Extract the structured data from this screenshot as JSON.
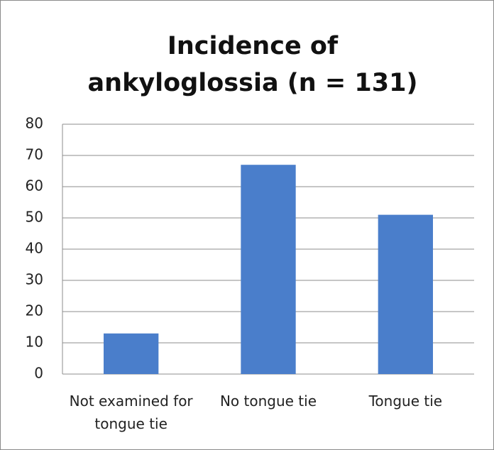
{
  "chart_data": {
    "type": "bar",
    "title": "Incidence of ankyloglossia (n = 131)",
    "categories": [
      "Not examined for tongue tie",
      "No tongue tie",
      "Tongue tie"
    ],
    "values": [
      13,
      67,
      51
    ],
    "color": "#4a7ecb",
    "ylim": [
      0,
      80
    ],
    "yticks": [
      0,
      10,
      20,
      30,
      40,
      50,
      60,
      70,
      80
    ],
    "grid": true
  }
}
